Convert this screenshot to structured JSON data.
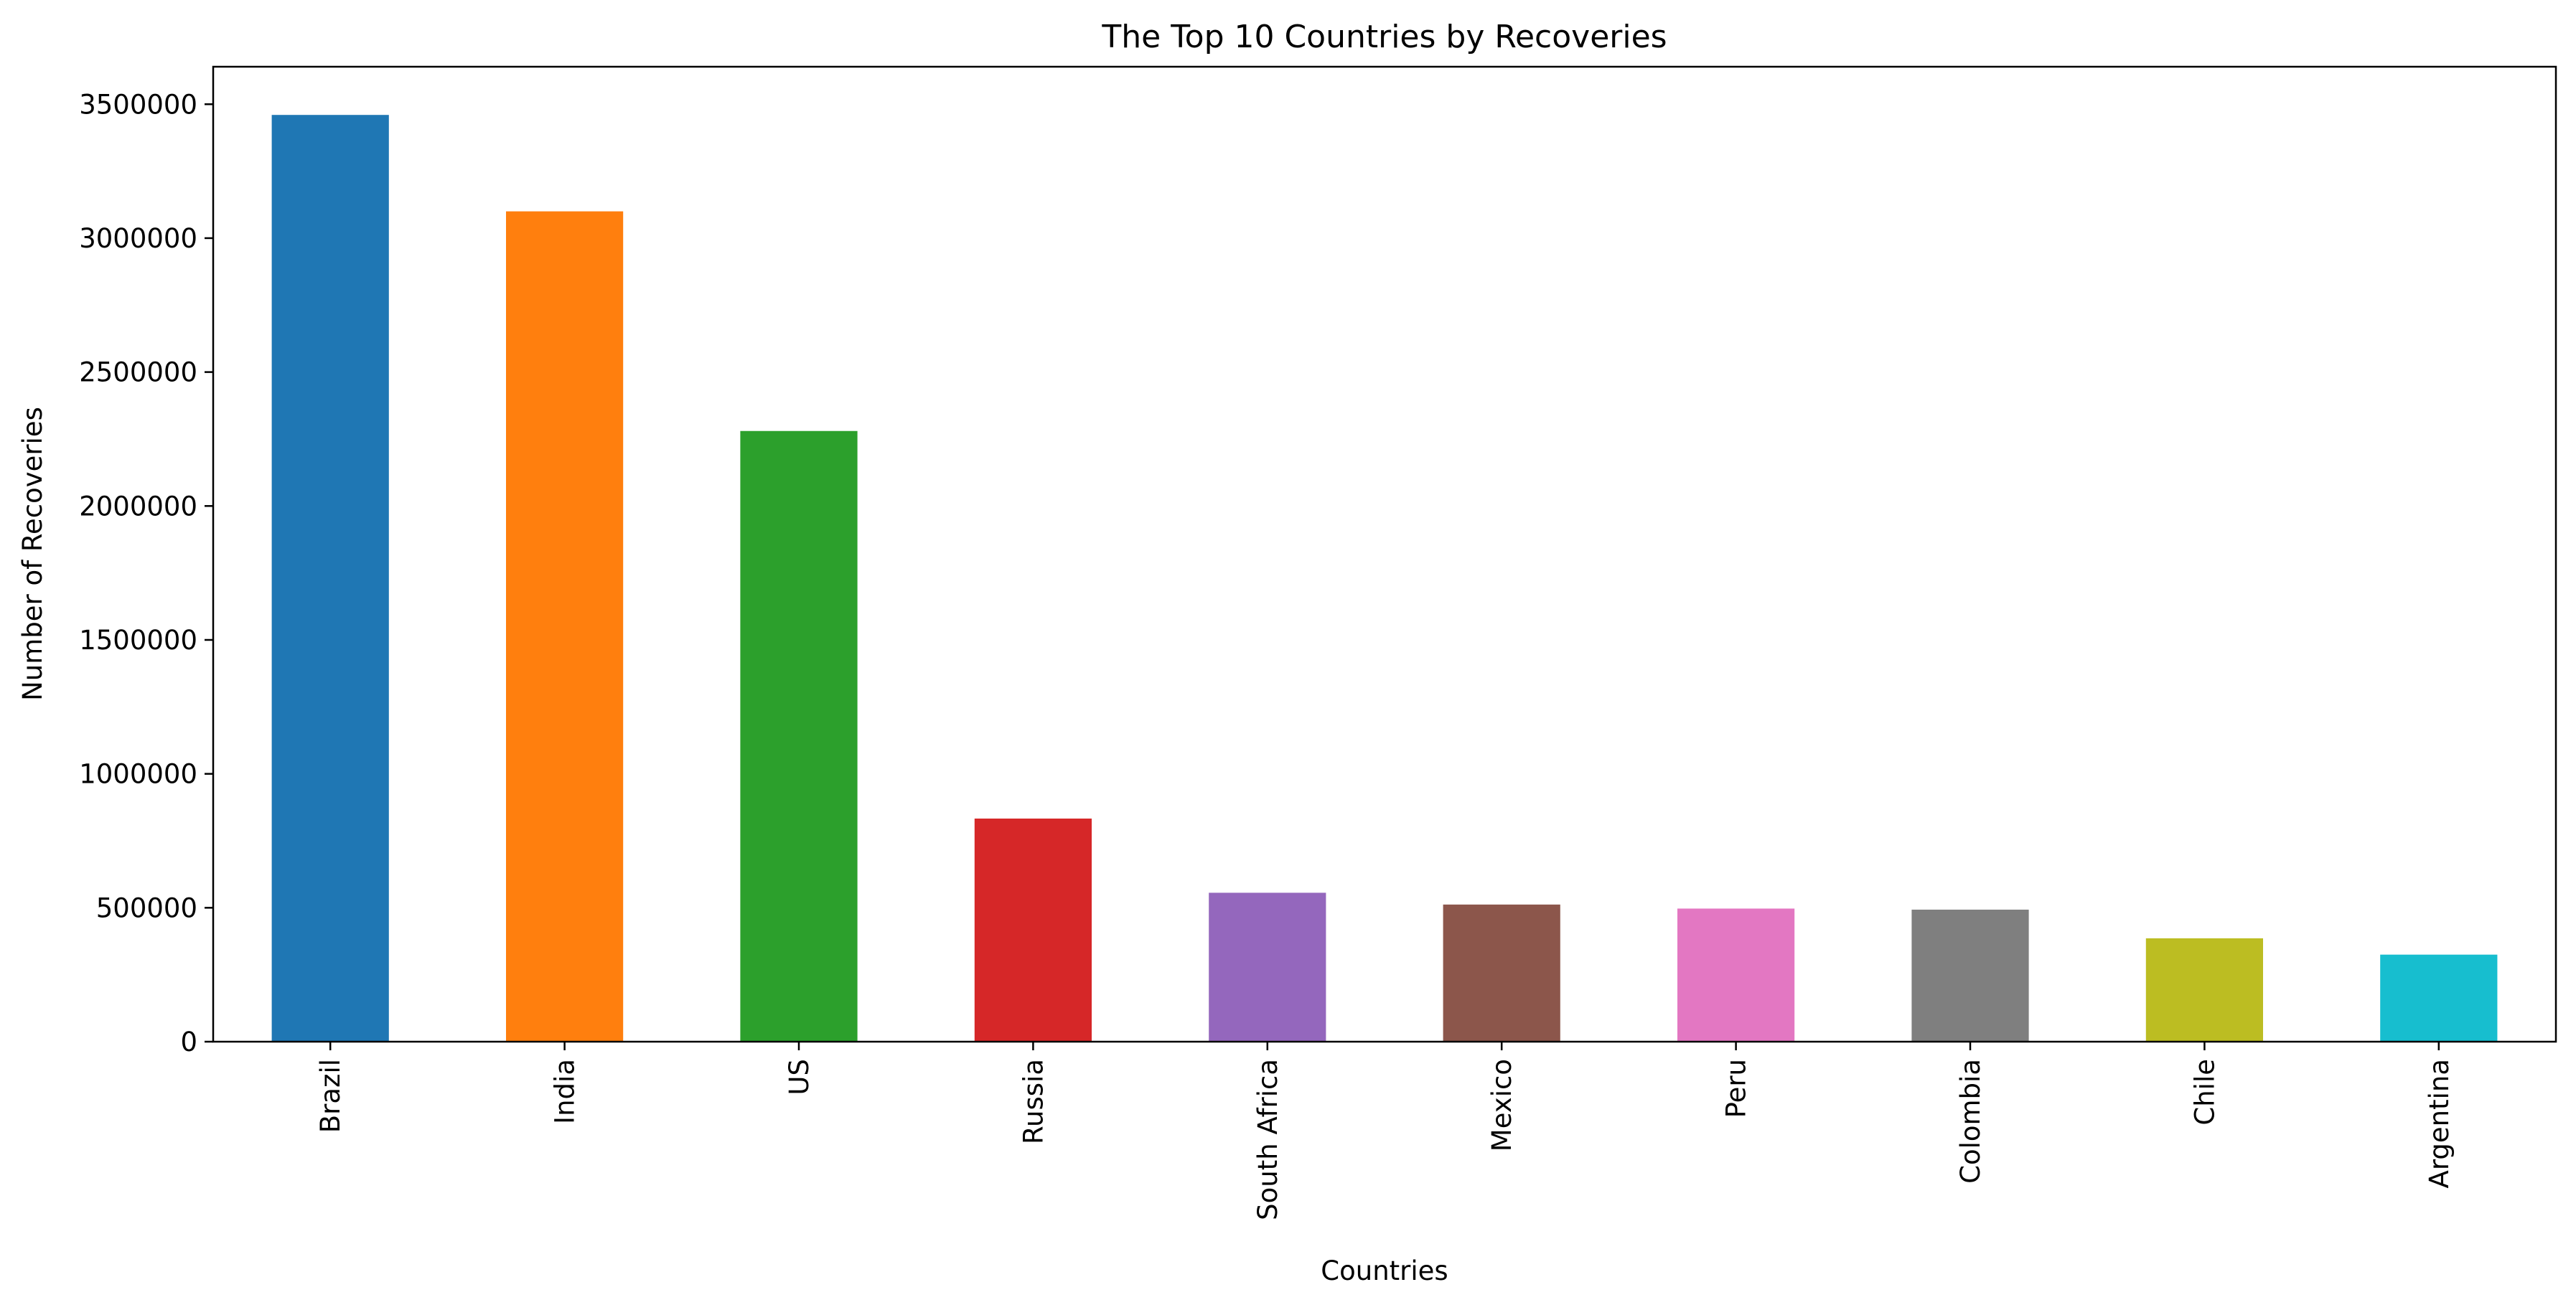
{
  "chart_data": {
    "type": "bar",
    "title": "The Top 10 Countries by Recoveries",
    "xlabel": "Countries",
    "ylabel": "Number of Recoveries",
    "categories": [
      "Brazil",
      "India",
      "US",
      "Russia",
      "South Africa",
      "Mexico",
      "Peru",
      "Colombia",
      "Chile",
      "Argentina"
    ],
    "values": [
      3460000,
      3100000,
      2280000,
      833000,
      556000,
      512000,
      497000,
      493000,
      386000,
      325000
    ],
    "colors": [
      "#1f77b4",
      "#ff7f0e",
      "#2ca02c",
      "#d62728",
      "#9467bd",
      "#8c564b",
      "#e377c2",
      "#7f7f7f",
      "#bcbd22",
      "#17becf"
    ],
    "ylim": [
      0,
      3640000
    ],
    "yticks": [
      0,
      500000,
      1000000,
      1500000,
      2000000,
      2500000,
      3000000,
      3500000
    ],
    "ytick_labels": [
      "0",
      "500000",
      "1000000",
      "1500000",
      "2000000",
      "2500000",
      "3000000",
      "3500000"
    ],
    "grid": false,
    "legend": "none"
  }
}
